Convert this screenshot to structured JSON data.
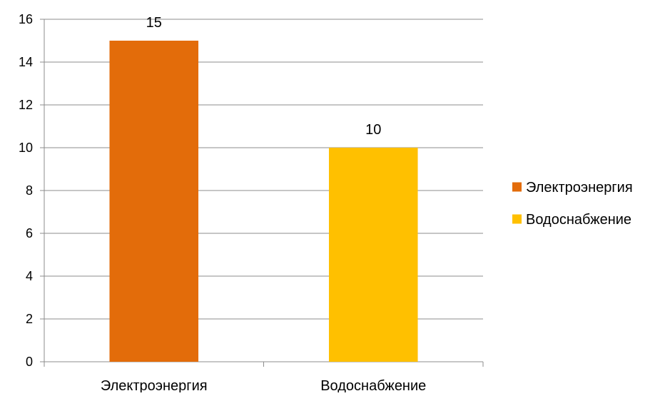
{
  "chart_data": {
    "type": "bar",
    "categories": [
      "Электроэнергия",
      "Водоснабжение"
    ],
    "values": [
      15,
      10
    ],
    "colors": [
      "#E36C0A",
      "#FFC000"
    ],
    "ylim": [
      0,
      16
    ],
    "ytick_step": 2,
    "yticks": [
      "0",
      "2",
      "4",
      "6",
      "8",
      "10",
      "12",
      "14",
      "16"
    ],
    "data_labels": [
      "15",
      "10"
    ],
    "grid": true,
    "legend": {
      "position": "right",
      "entries": [
        {
          "label": "Электроэнергия",
          "color": "#E36C0A"
        },
        {
          "label": "Водоснабжение",
          "color": "#FFC000"
        }
      ]
    },
    "title": "",
    "xlabel": "",
    "ylabel": ""
  }
}
